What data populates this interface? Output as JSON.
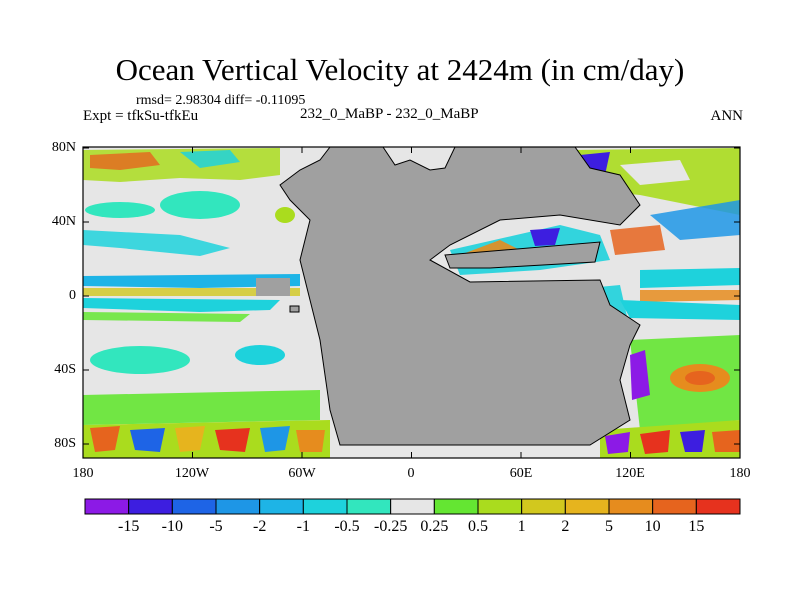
{
  "title": "Ocean Vertical Velocity at 2424m (in cm/day)",
  "stats": "rmsd= 2.98304 diff= -0.11095",
  "experiment": "Expt = tfkSu-tfkEu",
  "case": "232_0_MaBP - 232_0_MaBP",
  "season": "ANN",
  "map": {
    "lat_labels": [
      "80N",
      "40N",
      "0",
      "40S",
      "80S"
    ],
    "lon_labels": [
      "180",
      "120W",
      "60W",
      "0",
      "60E",
      "120E",
      "180"
    ],
    "land_color": "#a0a0a0",
    "ocean_neutral_color": "#e6e6e6"
  },
  "colorbar": {
    "labels": [
      "-15",
      "-10",
      "-5",
      "-2",
      "-1",
      "-0.5",
      "-0.25",
      "0.25",
      "0.5",
      "1",
      "2",
      "5",
      "10",
      "15"
    ],
    "colors": [
      "#8c1ae6",
      "#3d1ee0",
      "#1e64e6",
      "#1e96e6",
      "#1eb4e6",
      "#1ed2dc",
      "#32e6be",
      "#e6e6e6",
      "#64e632",
      "#aadc1e",
      "#d2c81e",
      "#e6b41e",
      "#e68c1e",
      "#e6641e",
      "#e6321e"
    ]
  }
}
